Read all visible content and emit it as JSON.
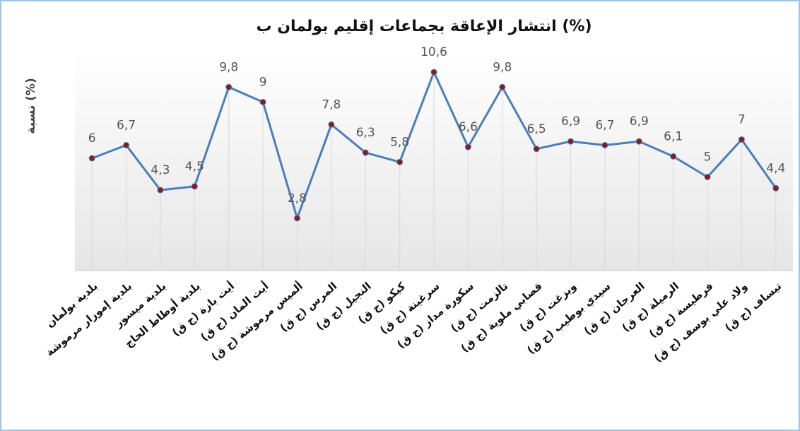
{
  "chart_data": {
    "type": "line",
    "title": "انتشار الإعاقة بجماعات إقليم بولمان ب (%)",
    "y_label": "نسبة (%)",
    "categories": [
      "بلدية بولمان",
      "بلدية إموزار مرموشة",
      "بلدية ميسور",
      "بلدية أوطاط الحاج",
      "أيت بازة (ج ق)",
      "أيت المان (ج ق)",
      "ألميس مرموشة (ج ق)",
      "المرس (ج ق)",
      "النجيل (ج ق)",
      "كيكو (ج ق)",
      "سرغينة (ج ق)",
      "سكورة مداز (ج ق)",
      "تالزمت (ج ق)",
      "قصابي ملوية (ج ق)",
      "ويزغت (ج ق)",
      "سيدي بوطيب (ج ق)",
      "العرجان (ج ق)",
      "الرميلة (ج ق)",
      "فرطيسة (ج ق)",
      "ولاد علي يوسف (ج ق)",
      "تيساف (ج ق)"
    ],
    "values": [
      6,
      6.7,
      4.3,
      4.5,
      9.8,
      9,
      2.8,
      7.8,
      6.3,
      5.8,
      10.6,
      6.6,
      9.8,
      6.5,
      6.9,
      6.7,
      6.9,
      6.1,
      5,
      7,
      4.4
    ],
    "value_labels": [
      "6",
      "6,7",
      "4,3",
      "4,5",
      "9,8",
      "9",
      "2,8",
      "7,8",
      "6,3",
      "5,8",
      "10,6",
      "6,6",
      "9,8",
      "6,5",
      "6,9",
      "6,7",
      "6,9",
      "6,1",
      "5",
      "7",
      "4,4"
    ],
    "color": "#4a7ebb",
    "marker_color": "#8b1a1a",
    "ylim": [
      0,
      12
    ],
    "drop_lines": true
  }
}
